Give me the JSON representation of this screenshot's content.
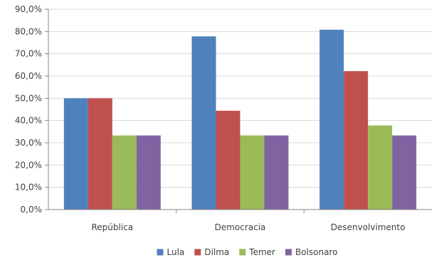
{
  "chart_data": {
    "type": "bar",
    "title": "",
    "xlabel": "",
    "ylabel": "",
    "categories": [
      "República",
      "Democracia",
      "Desenvolvimento"
    ],
    "series": [
      {
        "name": "Lula",
        "values": [
          50.0,
          77.8,
          80.8
        ],
        "color": "#4F81BD"
      },
      {
        "name": "Dilma",
        "values": [
          50.0,
          44.4,
          62.2
        ],
        "color": "#C0504D"
      },
      {
        "name": "Temer",
        "values": [
          33.3,
          33.3,
          37.8
        ],
        "color": "#9BBB59"
      },
      {
        "name": "Bolsonaro",
        "values": [
          33.3,
          33.3,
          33.3
        ],
        "color": "#8064A2"
      }
    ],
    "ylim": [
      0,
      90
    ],
    "yticks": [
      "0,0%",
      "10,0%",
      "20,0%",
      "30,0%",
      "40,0%",
      "50,0%",
      "60,0%",
      "70,0%",
      "80,0%",
      "90,0%"
    ],
    "grid": "horizontal",
    "legend": "bottom-center"
  }
}
